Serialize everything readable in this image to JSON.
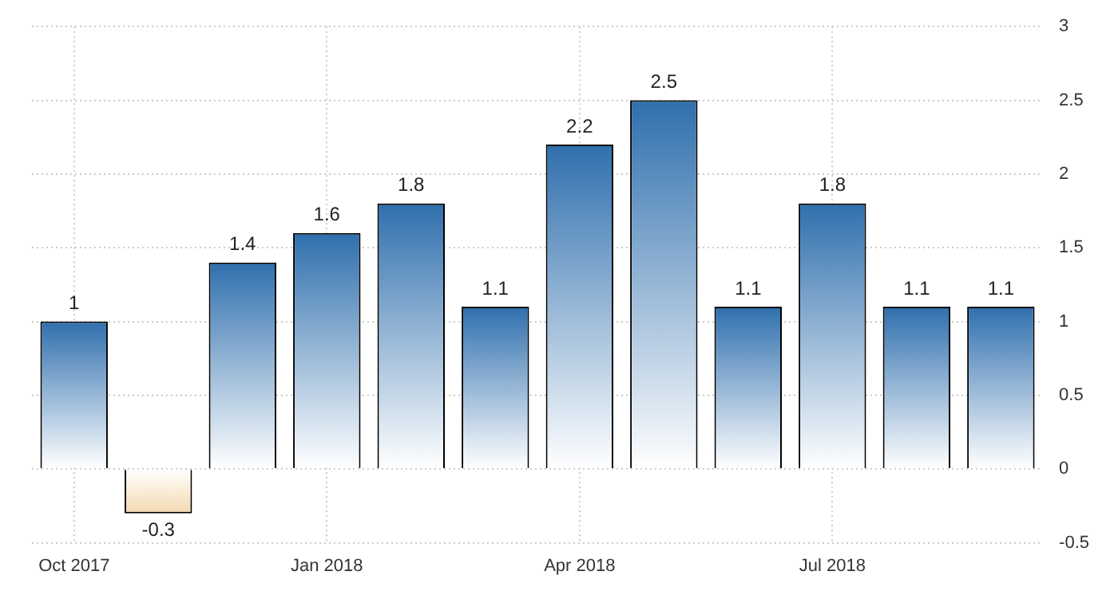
{
  "chart_data": {
    "type": "bar",
    "categories": [
      "Oct 2017",
      null,
      null,
      "Jan 2018",
      null,
      null,
      "Apr 2018",
      null,
      null,
      "Jul 2018",
      null,
      null
    ],
    "values": [
      1,
      -0.3,
      1.4,
      1.6,
      1.8,
      1.1,
      2.2,
      2.5,
      1.1,
      1.8,
      1.1,
      1.1
    ],
    "colors": [
      "#2f6fad",
      "#f3d9b0",
      "#2f6fad",
      "#2f6fad",
      "#2f6fad",
      "#2f6fad",
      "#2f6fad",
      "#2f6fad",
      "#2f6fad",
      "#2f6fad",
      "#2f6fad",
      "#2f6fad"
    ],
    "ylim": [
      -0.5,
      3
    ],
    "yticks": [
      -0.5,
      0,
      0.5,
      1,
      1.5,
      2,
      2.5,
      3
    ],
    "grid": true,
    "data_labels": true
  }
}
